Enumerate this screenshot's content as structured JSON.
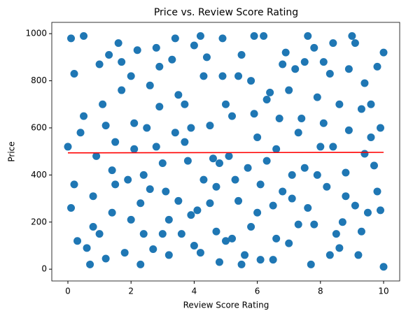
{
  "chart_data": {
    "type": "scatter",
    "title": "Price vs. Review Score Rating",
    "xlabel": "Review Score Rating",
    "ylabel": "Price",
    "xlim": [
      -0.51,
      10.51
    ],
    "ylim": [
      -50,
      1048
    ],
    "xticks": [
      0,
      2,
      4,
      6,
      8,
      10
    ],
    "yticks": [
      0,
      200,
      400,
      600,
      800,
      1000
    ],
    "series": [
      {
        "type": "scatter",
        "color": "#1f77b4",
        "x": [
          0.1,
          0.3,
          0.5,
          0.8,
          1.0,
          1.2,
          1.5,
          1.7,
          2.0,
          2.2,
          2.4,
          2.7,
          2.9,
          3.1,
          3.4,
          3.6,
          3.9,
          4.1,
          4.3,
          4.6,
          4.8,
          5.0,
          5.3,
          5.5,
          5.8,
          6.0,
          6.2,
          6.5,
          6.7,
          7.0,
          7.2,
          7.5,
          7.7,
          7.9,
          8.2,
          8.4,
          8.7,
          8.9,
          9.2,
          9.4,
          9.7,
          9.9,
          0.0,
          0.2,
          0.6,
          0.9,
          1.1,
          1.4,
          1.6,
          1.9,
          2.1,
          2.3,
          2.6,
          2.8,
          3.0,
          3.3,
          3.5,
          3.8,
          4.0,
          4.2,
          4.5,
          4.7,
          4.9,
          5.2,
          5.4,
          5.7,
          5.9,
          6.1,
          6.4,
          6.6,
          6.9,
          7.1,
          7.4,
          7.6,
          7.8,
          8.1,
          8.3,
          8.6,
          8.8,
          9.1,
          9.3,
          9.6,
          9.8,
          10.0,
          0.1,
          0.4,
          0.7,
          1.0,
          1.3,
          1.5,
          1.8,
          2.0,
          2.3,
          2.5,
          2.8,
          3.0,
          3.2,
          3.5,
          3.7,
          4.0,
          4.3,
          4.4,
          4.7,
          4.9,
          5.1,
          5.4,
          5.6,
          5.9,
          6.1,
          6.3,
          6.6,
          6.8,
          7.1,
          7.3,
          7.6,
          7.8,
          8.0,
          8.3,
          8.5,
          8.8,
          9.0,
          9.3,
          9.5,
          9.8,
          10.0,
          0.2,
          0.5,
          0.8,
          1.2,
          1.4,
          1.7,
          2.1,
          2.4,
          2.6,
          2.9,
          3.2,
          3.4,
          3.7,
          3.9,
          4.2,
          4.5,
          4.8,
          5.0,
          5.2,
          5.5,
          5.8,
          6.0,
          6.3,
          6.5,
          6.8,
          7.0,
          7.3,
          7.5,
          7.9,
          8.1,
          8.4,
          8.6,
          8.9,
          9.1,
          9.4,
          9.6,
          9.9
        ],
        "values": [
          980,
          120,
          650,
          310,
          870,
          45,
          540,
          760,
          210,
          930,
          400,
          85,
          690,
          330,
          980,
          150,
          600,
          250,
          820,
          470,
          30,
          700,
          380,
          910,
          180,
          560,
          990,
          270,
          640,
          110,
          850,
          430,
          20,
          730,
          350,
          960,
          200,
          590,
          60,
          790,
          440,
          250,
          520,
          830,
          90,
          480,
          700,
          240,
          960,
          380,
          620,
          20,
          780,
          520,
          150,
          890,
          290,
          460,
          950,
          70,
          610,
          350,
          980,
          130,
          820,
          430,
          660,
          40,
          750,
          510,
          920,
          300,
          640,
          990,
          190,
          880,
          60,
          700,
          410,
          960,
          160,
          560,
          330,
          920,
          260,
          580,
          20,
          150,
          910,
          360,
          70,
          820,
          280,
          600,
          940,
          450,
          210,
          740,
          540,
          100,
          380,
          900,
          160,
          820,
          480,
          290,
          60,
          990,
          360,
          720,
          130,
          870,
          400,
          580,
          260,
          940,
          520,
          830,
          150,
          310,
          990,
          680,
          240,
          860,
          10,
          360,
          990,
          180,
          610,
          420,
          880,
          510,
          150,
          340,
          860,
          60,
          580,
          700,
          230,
          990,
          280,
          450,
          120,
          650,
          20,
          800,
          240,
          460,
          40,
          330,
          760,
          190,
          880,
          400,
          620,
          520,
          90,
          850,
          270,
          490,
          700,
          600
        ]
      },
      {
        "type": "line",
        "color": "red",
        "x": [
          0,
          10
        ],
        "values": [
          494,
          496
        ]
      }
    ]
  }
}
